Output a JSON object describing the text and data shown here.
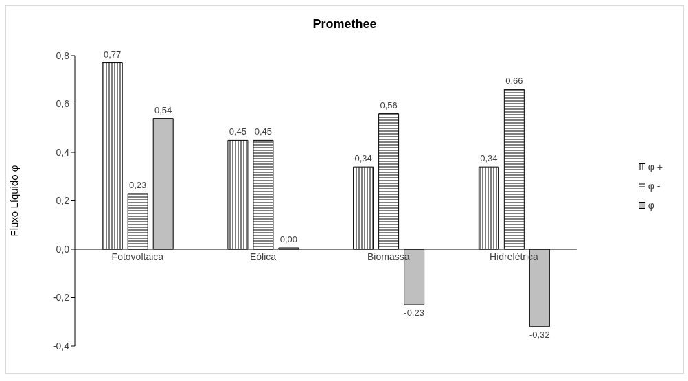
{
  "chart_data": {
    "type": "bar",
    "title": "Promethee",
    "ylabel": "Fluxo Líquido φ",
    "categories": [
      "Fotovoltaica",
      "Eólica",
      "Biomassa",
      "Hidrelétrica"
    ],
    "series": [
      {
        "name": "φ +",
        "color": "#000000",
        "values": [
          0.77,
          0.45,
          0.34,
          0.34
        ],
        "value_labels": [
          "0,77",
          "0,45",
          "0,34",
          "0,34"
        ]
      },
      {
        "name": "φ -",
        "color": "#000000",
        "values": [
          0.23,
          0.45,
          0.56,
          0.66
        ],
        "value_labels": [
          "0,23",
          "0,45",
          "0,56",
          "0,66"
        ]
      },
      {
        "name": "φ",
        "color": "#bfbfbf",
        "values": [
          0.54,
          0.0,
          -0.23,
          -0.32
        ],
        "value_labels": [
          "0,54",
          "0,00",
          "-0,23",
          "-0,32"
        ]
      }
    ],
    "ylim": [
      -0.4,
      0.8
    ],
    "yticks": [
      {
        "value": -0.4,
        "label": "-0,4"
      },
      {
        "value": -0.2,
        "label": "-0,2"
      },
      {
        "value": 0,
        "label": "0,0"
      },
      {
        "value": 0.2,
        "label": "0,2"
      },
      {
        "value": 0.4,
        "label": "0,4"
      },
      {
        "value": 0.6,
        "label": "0,6"
      },
      {
        "value": 0.8,
        "label": "0,8"
      }
    ],
    "grid": false,
    "legend": "right"
  }
}
